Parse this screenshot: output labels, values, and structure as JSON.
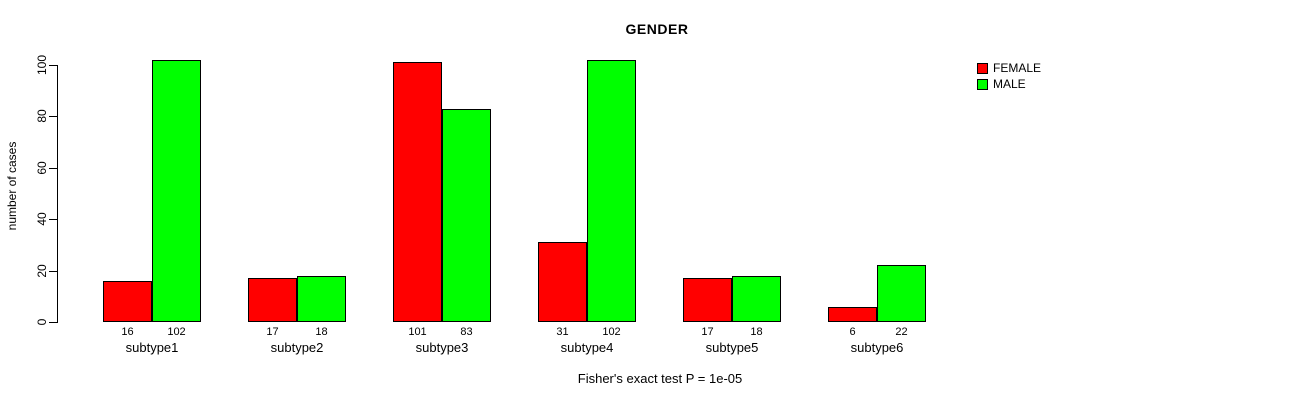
{
  "chart_data": {
    "type": "bar",
    "title": "GENDER",
    "xlabel": "",
    "ylabel": "number of cases",
    "annotation": "Fisher's exact test P = 1e-05",
    "categories": [
      "subtype1",
      "subtype2",
      "subtype3",
      "subtype4",
      "subtype5",
      "subtype6"
    ],
    "series": [
      {
        "name": "FEMALE",
        "color": "#ff0000",
        "values": [
          16,
          17,
          101,
          31,
          17,
          6
        ]
      },
      {
        "name": "MALE",
        "color": "#00ff00",
        "values": [
          102,
          18,
          83,
          102,
          18,
          22
        ]
      }
    ],
    "bar_labels_shown": true,
    "ylim": [
      0,
      100
    ],
    "yticks": [
      0,
      20,
      40,
      60,
      80,
      100
    ],
    "grid": false,
    "legend_position": "top-right",
    "axis_color": "#000000",
    "background_color": "#ffffff"
  }
}
